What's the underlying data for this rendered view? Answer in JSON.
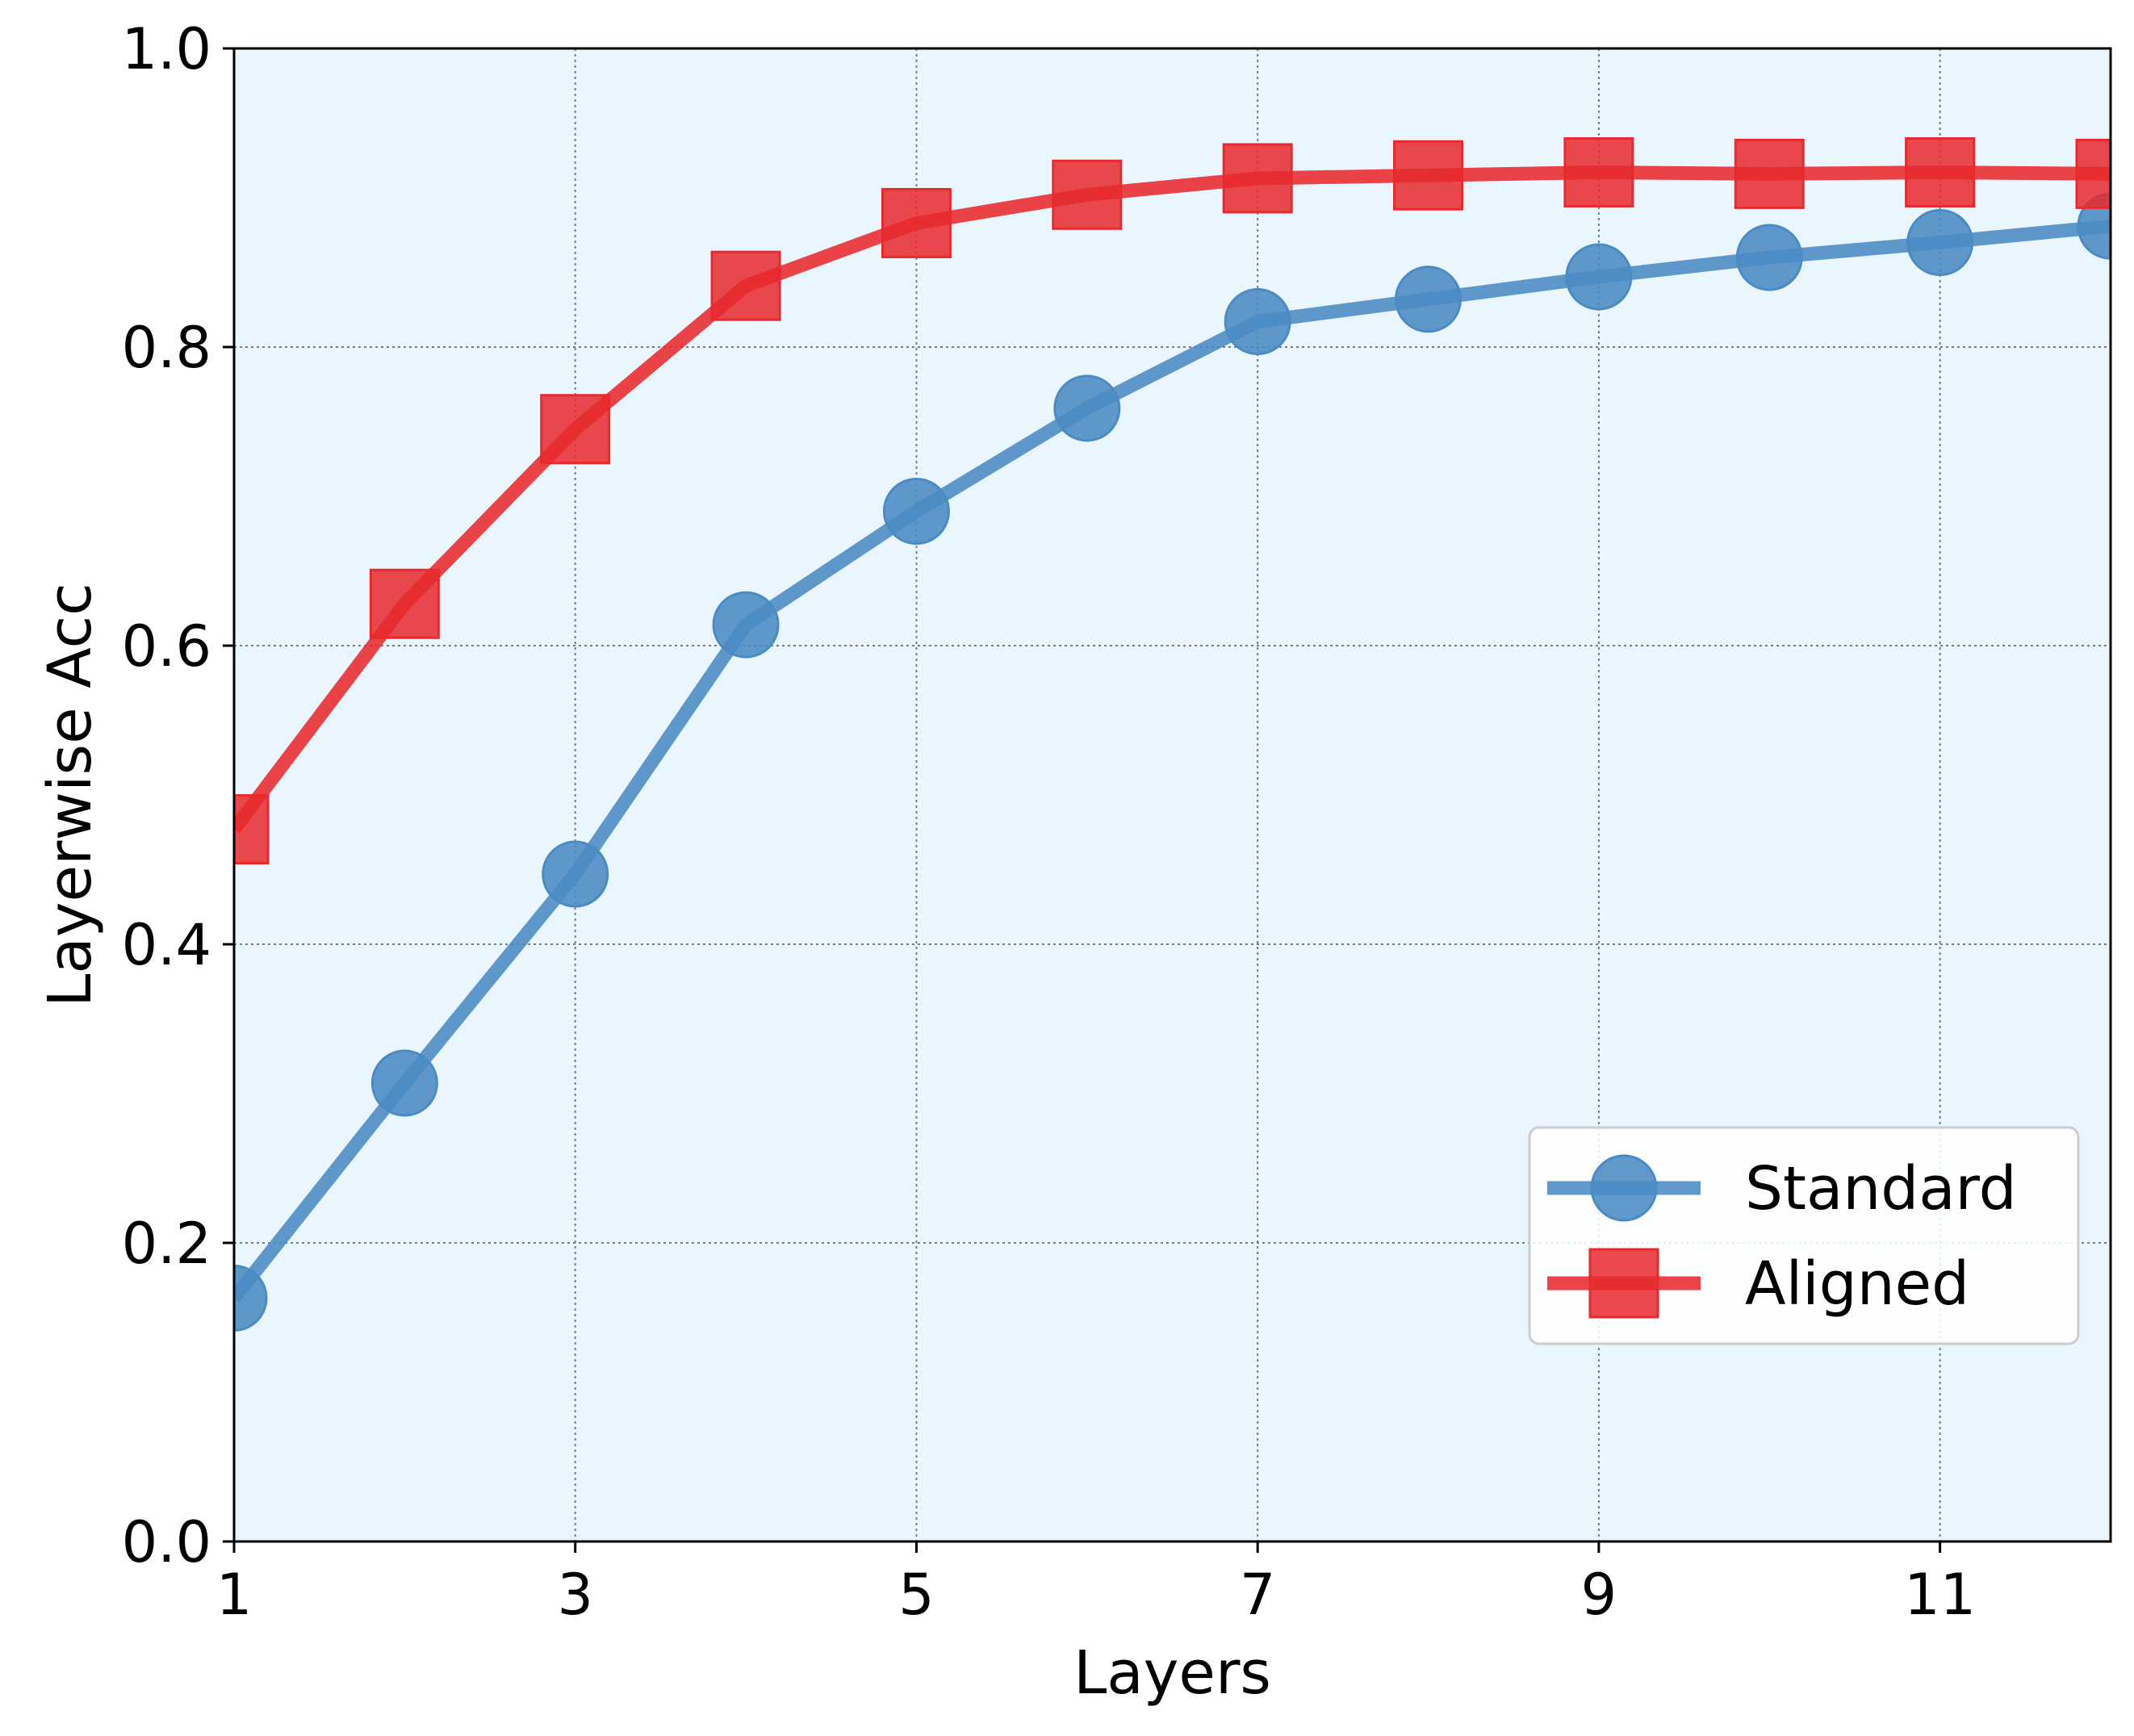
{
  "chart_data": {
    "type": "line",
    "title": "",
    "xlabel": "Layers",
    "ylabel": "Layerwise Acc",
    "xlim": [
      1,
      12
    ],
    "ylim": [
      0.0,
      1.0
    ],
    "xticks": [
      1,
      3,
      5,
      7,
      9,
      11
    ],
    "xtick_labels": [
      "1",
      "3",
      "5",
      "7",
      "9",
      "11"
    ],
    "yticks": [
      0.0,
      0.2,
      0.4,
      0.6,
      0.8,
      1.0
    ],
    "ytick_labels": [
      "0.0",
      "0.2",
      "0.4",
      "0.6",
      "0.8",
      "1.0"
    ],
    "grid": true,
    "background_color": "#eaf6fd",
    "legend_position": "lower-right",
    "x": [
      1,
      2,
      3,
      4,
      5,
      6,
      7,
      8,
      9,
      10,
      11,
      12
    ],
    "series": [
      {
        "name": "Standard",
        "marker": "circle",
        "color": "#4a8bc4",
        "values": [
          0.163,
          0.307,
          0.447,
          0.614,
          0.69,
          0.759,
          0.817,
          0.832,
          0.847,
          0.86,
          0.87,
          0.881
        ]
      },
      {
        "name": "Aligned",
        "marker": "square",
        "color": "#e8292e",
        "values": [
          0.477,
          0.628,
          0.745,
          0.841,
          0.883,
          0.902,
          0.913,
          0.915,
          0.917,
          0.916,
          0.917,
          0.916
        ]
      }
    ]
  }
}
